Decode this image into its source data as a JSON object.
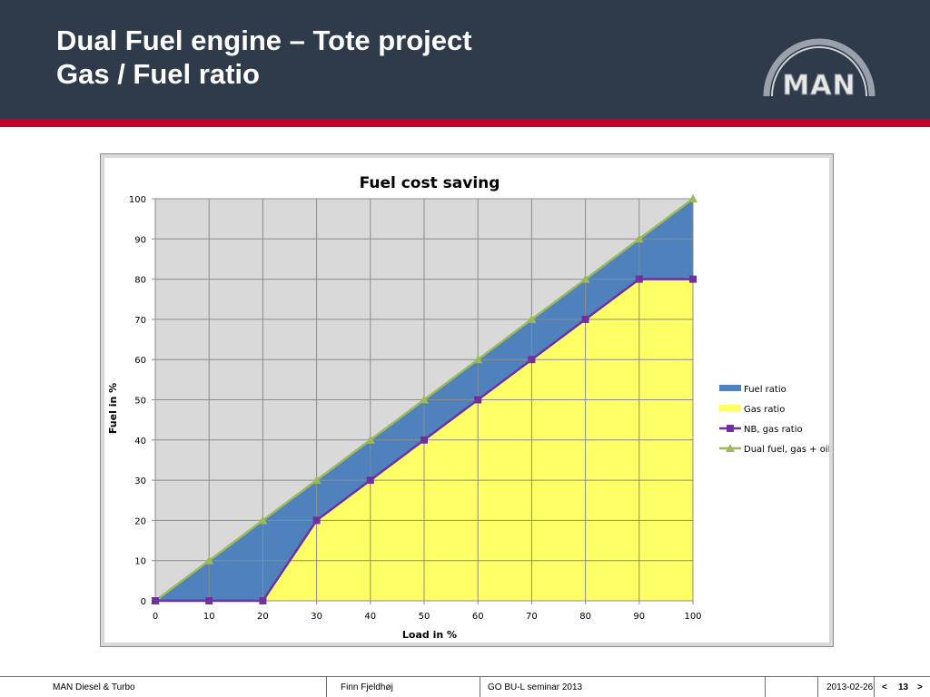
{
  "slide": {
    "title_line1": "Dual Fuel engine – Tote project",
    "title_line2": "Gas / Fuel ratio",
    "logo_text": "MAN"
  },
  "footer": {
    "company": "MAN Diesel & Turbo",
    "author": "Finn Fjeldhøj",
    "event": "GO BU-L seminar 2013",
    "date": "2013-02-26",
    "prev": "<",
    "page": "13",
    "next": ">"
  },
  "colors": {
    "header_bg": "#2f3a4a",
    "accent_red": "#c6002b",
    "fuel_ratio": "#4f81bd",
    "gas_ratio": "#ffff66",
    "nb_line": "#7030a0",
    "dual_line": "#9bbb59",
    "plot_bg": "#d9d9d9"
  },
  "chart_data": {
    "type": "area",
    "title": "Fuel cost saving",
    "xlabel": "Load in %",
    "ylabel": "Fuel in %",
    "xlim": [
      0,
      100
    ],
    "ylim": [
      0,
      100
    ],
    "x_ticks": [
      0,
      10,
      20,
      30,
      40,
      50,
      60,
      70,
      80,
      90,
      100
    ],
    "y_ticks": [
      0,
      10,
      20,
      30,
      40,
      50,
      60,
      70,
      80,
      90,
      100
    ],
    "grid": true,
    "legend_position": "right",
    "x": [
      0,
      10,
      20,
      30,
      40,
      50,
      60,
      70,
      80,
      90,
      100
    ],
    "series": [
      {
        "name": "Fuel ratio",
        "kind": "area",
        "values": [
          0,
          10,
          20,
          10,
          10,
          10,
          10,
          10,
          10,
          10,
          20
        ]
      },
      {
        "name": "Gas ratio",
        "kind": "area",
        "values": [
          0,
          0,
          0,
          20,
          30,
          40,
          50,
          60,
          70,
          80,
          80
        ]
      },
      {
        "name": "NB, gas ratio",
        "kind": "line",
        "marker": "square",
        "values": [
          0,
          0,
          0,
          20,
          30,
          40,
          50,
          60,
          70,
          80,
          80
        ]
      },
      {
        "name": "Dual fuel, gas + oil",
        "kind": "line",
        "marker": "triangle",
        "values": [
          0,
          10,
          20,
          30,
          40,
          50,
          60,
          70,
          80,
          90,
          100
        ]
      }
    ]
  }
}
